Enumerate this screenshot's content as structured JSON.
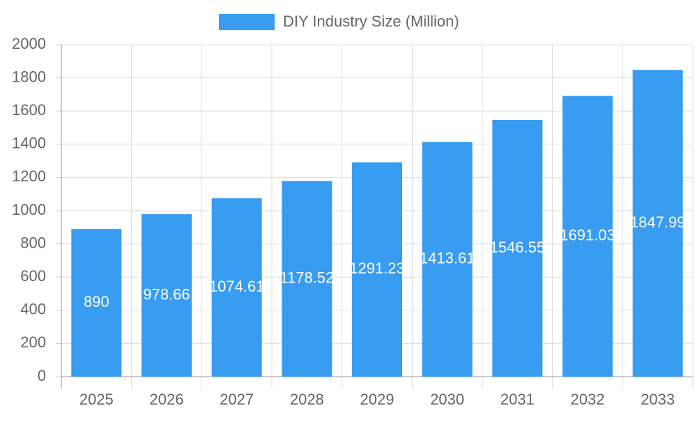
{
  "chart_data": {
    "type": "bar",
    "categories": [
      "2025",
      "2026",
      "2027",
      "2028",
      "2029",
      "2030",
      "2031",
      "2032",
      "2033"
    ],
    "series": [
      {
        "name": "DIY Industry Size (Million)",
        "color": "#389cf0",
        "values": [
          890,
          978.66,
          1074.61,
          1178.52,
          1291.23,
          1413.61,
          1546.55,
          1691.03,
          1847.99
        ]
      }
    ],
    "ylim": [
      0,
      2000
    ],
    "yticks": [
      0,
      200,
      400,
      600,
      800,
      1000,
      1200,
      1400,
      1600,
      1800,
      2000
    ],
    "grid": true,
    "legend": "top"
  }
}
